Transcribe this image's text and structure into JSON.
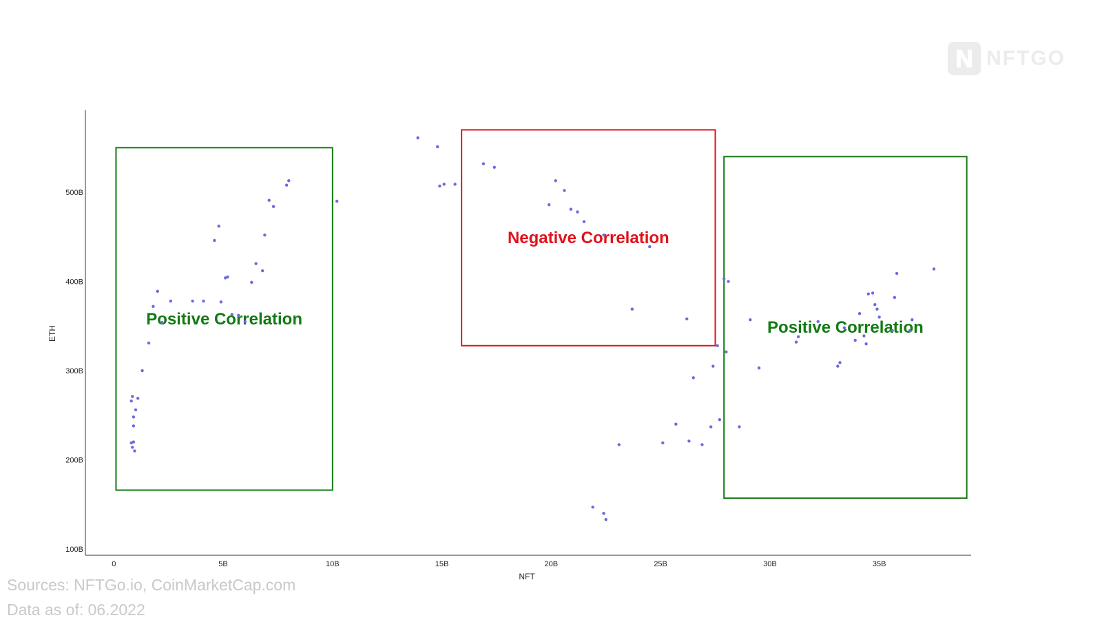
{
  "logo": {
    "text": "NFTGO"
  },
  "footer": {
    "sources": "Sources: NFTGo.io, CoinMarketCap.com",
    "date": "Data as of: 06.2022"
  },
  "colors": {
    "points": "#6b6bde",
    "positive": "#137a13",
    "negative": "#e0121c",
    "axis": "#333333",
    "footer": "#c9c9c9"
  },
  "chart_data": {
    "type": "scatter",
    "xlabel": "NFT",
    "ylabel": "ETH",
    "xlim": [
      -1.3,
      39.2
    ],
    "ylim": [
      93,
      592
    ],
    "xticks": [
      {
        "value": 0,
        "label": "0"
      },
      {
        "value": 5,
        "label": "5B"
      },
      {
        "value": 10,
        "label": "10B"
      },
      {
        "value": 15,
        "label": "15B"
      },
      {
        "value": 20,
        "label": "20B"
      },
      {
        "value": 25,
        "label": "25B"
      },
      {
        "value": 30,
        "label": "30B"
      },
      {
        "value": 35,
        "label": "35B"
      }
    ],
    "yticks": [
      {
        "value": 100,
        "label": "100B"
      },
      {
        "value": 200,
        "label": "200B"
      },
      {
        "value": 300,
        "label": "300B"
      },
      {
        "value": 400,
        "label": "400B"
      },
      {
        "value": 500,
        "label": "500B"
      }
    ],
    "grid": false,
    "legend": "none",
    "points": [
      [
        0.8,
        219
      ],
      [
        0.85,
        214
      ],
      [
        0.9,
        220
      ],
      [
        0.95,
        210
      ],
      [
        0.8,
        266
      ],
      [
        0.85,
        271
      ],
      [
        0.9,
        248
      ],
      [
        0.9,
        238
      ],
      [
        1.0,
        256
      ],
      [
        1.1,
        269
      ],
      [
        1.3,
        300
      ],
      [
        1.6,
        331
      ],
      [
        1.8,
        372
      ],
      [
        2.0,
        389
      ],
      [
        2.2,
        354
      ],
      [
        2.6,
        378
      ],
      [
        3.6,
        378
      ],
      [
        4.1,
        378
      ],
      [
        4.6,
        446
      ],
      [
        4.8,
        462
      ],
      [
        4.9,
        377
      ],
      [
        5.1,
        404
      ],
      [
        5.2,
        405
      ],
      [
        5.4,
        363
      ],
      [
        5.7,
        362
      ],
      [
        6.0,
        355
      ],
      [
        6.3,
        399
      ],
      [
        6.5,
        420
      ],
      [
        6.8,
        412
      ],
      [
        6.9,
        452
      ],
      [
        7.1,
        491
      ],
      [
        7.3,
        484
      ],
      [
        7.9,
        508
      ],
      [
        8.0,
        513
      ],
      [
        10.2,
        490
      ],
      [
        13.9,
        561
      ],
      [
        14.8,
        551
      ],
      [
        14.9,
        507
      ],
      [
        15.1,
        509
      ],
      [
        15.6,
        509
      ],
      [
        16.9,
        532
      ],
      [
        17.4,
        528
      ],
      [
        19.9,
        486
      ],
      [
        20.2,
        513
      ],
      [
        20.6,
        502
      ],
      [
        20.9,
        481
      ],
      [
        21.2,
        478
      ],
      [
        21.5,
        467
      ],
      [
        22.4,
        452
      ],
      [
        23.7,
        369
      ],
      [
        24.5,
        439
      ],
      [
        21.9,
        147
      ],
      [
        22.4,
        140
      ],
      [
        22.5,
        133
      ],
      [
        23.1,
        217
      ],
      [
        25.1,
        219
      ],
      [
        25.7,
        240
      ],
      [
        26.2,
        358
      ],
      [
        26.3,
        221
      ],
      [
        26.5,
        292
      ],
      [
        26.9,
        217
      ],
      [
        27.3,
        237
      ],
      [
        27.4,
        305
      ],
      [
        27.6,
        328
      ],
      [
        27.7,
        245
      ],
      [
        27.9,
        403
      ],
      [
        28.0,
        321
      ],
      [
        28.1,
        400
      ],
      [
        28.6,
        237
      ],
      [
        29.1,
        357
      ],
      [
        29.5,
        303
      ],
      [
        31.2,
        332
      ],
      [
        31.3,
        338
      ],
      [
        32.2,
        355
      ],
      [
        33.1,
        305
      ],
      [
        33.2,
        309
      ],
      [
        33.4,
        348
      ],
      [
        33.9,
        334
      ],
      [
        34.1,
        364
      ],
      [
        34.3,
        339
      ],
      [
        34.4,
        330
      ],
      [
        34.5,
        386
      ],
      [
        34.7,
        387
      ],
      [
        34.8,
        374
      ],
      [
        34.9,
        369
      ],
      [
        35.0,
        360
      ],
      [
        35.6,
        345
      ],
      [
        35.7,
        382
      ],
      [
        35.8,
        409
      ],
      [
        36.4,
        345
      ],
      [
        36.5,
        357
      ],
      [
        37.5,
        414
      ]
    ],
    "annotations": [
      {
        "label": "Positive Correlation",
        "kind": "positive",
        "x": [
          0.1,
          10.0
        ],
        "y": [
          166,
          550
        ]
      },
      {
        "label": "Negative Correlation",
        "kind": "negative",
        "x": [
          15.9,
          27.5
        ],
        "y": [
          328,
          570
        ]
      },
      {
        "label": "Positive Correlation",
        "kind": "positive",
        "x": [
          27.9,
          39.0
        ],
        "y": [
          157,
          540
        ]
      }
    ]
  }
}
